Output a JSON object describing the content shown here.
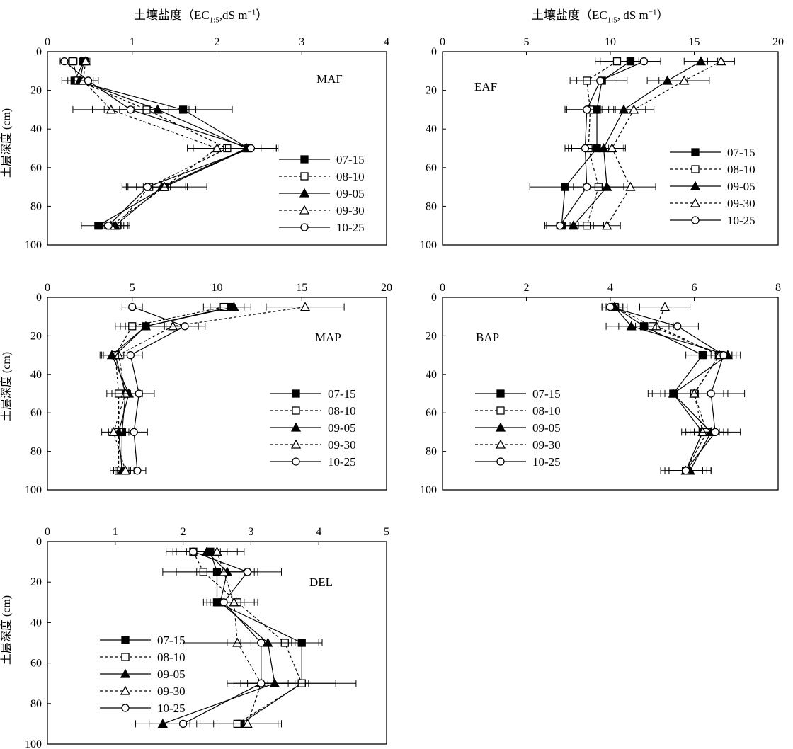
{
  "figure": {
    "top_titles": [
      "土壤盐度（EC",
      "1:5",
      ",dS m",
      "−1",
      "）"
    ],
    "top_titles_right": [
      "土壤盐度（EC",
      "1:5",
      ", dS m",
      "−1",
      "）"
    ],
    "marker_styles": {
      "07-15": {
        "shape": "square",
        "fill": "#000000",
        "dash": "solid"
      },
      "08-10": {
        "shape": "square",
        "fill": "#ffffff",
        "dash": "dashed"
      },
      "09-05": {
        "shape": "triangle",
        "fill": "#000000",
        "dash": "solid"
      },
      "09-30": {
        "shape": "triangle",
        "fill": "#ffffff",
        "dash": "dashed"
      },
      "10-25": {
        "shape": "circle",
        "fill": "#ffffff",
        "dash": "solid"
      }
    }
  },
  "chart_data": [
    {
      "type": "line",
      "panel": "MAF",
      "xlabel": "土壤盐度（EC1:5,dS m−1）",
      "ylabel": "土层深度 (cm)",
      "xlim": [
        0,
        4
      ],
      "xticks": [
        0,
        1,
        2,
        3,
        4
      ],
      "ylim": [
        0,
        100
      ],
      "yticks": [
        0,
        20,
        40,
        60,
        80,
        100
      ],
      "y_inverted": true,
      "legend_position": "right-middle",
      "depths": [
        5,
        15,
        30,
        50,
        70,
        90
      ],
      "series": [
        {
          "name": "07-15",
          "x": [
            0.43,
            0.32,
            1.6,
            2.37,
            1.38,
            0.6
          ],
          "err": [
            0.05,
            0.15,
            0.58,
            0.35,
            0.25,
            0.2
          ]
        },
        {
          "name": "08-10",
          "x": [
            0.3,
            0.36,
            1.17,
            2.12,
            1.2,
            0.82
          ],
          "err": [
            0.05,
            0.12,
            0.5,
            0.4,
            0.25,
            0.15
          ]
        },
        {
          "name": "09-05",
          "x": [
            0.43,
            0.38,
            1.3,
            2.35,
            1.35,
            0.8
          ],
          "err": [
            0.05,
            0.1,
            0.45,
            0.35,
            0.3,
            0.15
          ]
        },
        {
          "name": "09-30",
          "x": [
            0.45,
            0.42,
            0.75,
            2.0,
            1.38,
            0.75
          ],
          "err": [
            0.05,
            0.12,
            0.45,
            0.35,
            0.5,
            0.15
          ]
        },
        {
          "name": "10-25",
          "x": [
            0.2,
            0.48,
            0.98,
            2.4,
            1.18,
            0.72
          ],
          "err": [
            0.05,
            0.12,
            0.45,
            0.3,
            0.25,
            0.15
          ]
        }
      ]
    },
    {
      "type": "line",
      "panel": "EAF",
      "xlabel": "土壤盐度（EC1:5, dS m−1）",
      "ylabel": "",
      "xlim": [
        0,
        20
      ],
      "xticks": [
        0,
        5,
        10,
        15,
        20
      ],
      "ylim": [
        0,
        100
      ],
      "yticks": [
        0,
        20,
        40,
        60,
        80,
        100
      ],
      "y_inverted": true,
      "legend_position": "right-middle",
      "depths": [
        5,
        15,
        30,
        50,
        70,
        90
      ],
      "series": [
        {
          "name": "07-15",
          "x": [
            11.2,
            9.5,
            9.2,
            9.2,
            7.3,
            7.1
          ],
          "err": [
            1.8,
            1.5,
            1.8,
            1.5,
            2.1,
            1.0
          ]
        },
        {
          "name": "08-10",
          "x": [
            10.4,
            8.6,
            8.8,
            8.7,
            9.3,
            8.6
          ],
          "err": [
            1.3,
            1.0,
            1.5,
            1.2,
            1.5,
            1.0
          ]
        },
        {
          "name": "09-05",
          "x": [
            15.4,
            13.4,
            10.8,
            9.6,
            9.8,
            7.8
          ],
          "err": [
            1.0,
            1.2,
            1.3,
            1.2,
            1.4,
            1.0
          ]
        },
        {
          "name": "09-30",
          "x": [
            16.6,
            14.4,
            11.4,
            10.1,
            11.2,
            9.8
          ],
          "err": [
            0.8,
            1.5,
            1.2,
            0.8,
            1.5,
            0.8
          ]
        },
        {
          "name": "10-25",
          "x": [
            12.0,
            9.4,
            8.6,
            8.5,
            8.6,
            7.0
          ],
          "err": [
            1.0,
            1.0,
            1.3,
            1.2,
            1.2,
            0.8
          ]
        }
      ]
    },
    {
      "type": "line",
      "panel": "MAP",
      "xlabel": "",
      "ylabel": "土层深度 (cm)",
      "xlim": [
        0,
        20
      ],
      "xticks": [
        0,
        5,
        10,
        15,
        20
      ],
      "ylim": [
        0,
        100
      ],
      "yticks": [
        0,
        20,
        40,
        60,
        80,
        100
      ],
      "y_inverted": true,
      "legend_position": "right-middle",
      "depths": [
        5,
        15,
        30,
        50,
        70,
        90
      ],
      "series": [
        {
          "name": "07-15",
          "x": [
            10.8,
            5.8,
            4.0,
            4.6,
            4.4,
            4.4
          ],
          "err": [
            1.2,
            1.5,
            0.8,
            0.8,
            0.6,
            0.5
          ]
        },
        {
          "name": "08-10",
          "x": [
            10.4,
            5.0,
            4.0,
            4.2,
            4.2,
            4.2
          ],
          "err": [
            1.2,
            1.0,
            0.7,
            0.7,
            0.6,
            0.5
          ]
        },
        {
          "name": "09-05",
          "x": [
            11.0,
            5.8,
            3.8,
            4.8,
            4.2,
            4.4
          ],
          "err": [
            1.0,
            1.2,
            0.7,
            0.8,
            0.6,
            0.5
          ]
        },
        {
          "name": "09-30",
          "x": [
            15.2,
            7.4,
            4.2,
            4.6,
            3.9,
            4.6
          ],
          "err": [
            2.3,
            1.5,
            0.8,
            0.8,
            0.7,
            0.5
          ]
        },
        {
          "name": "10-25",
          "x": [
            5.0,
            8.1,
            4.9,
            5.4,
            5.1,
            5.3
          ],
          "err": [
            0.6,
            1.2,
            0.7,
            0.9,
            0.8,
            0.5
          ]
        }
      ]
    },
    {
      "type": "line",
      "panel": "BAP",
      "xlabel": "",
      "ylabel": "",
      "xlim": [
        0,
        8
      ],
      "xticks": [
        0,
        2,
        4,
        6,
        8
      ],
      "ylim": [
        0,
        100
      ],
      "yticks": [
        0,
        20,
        40,
        60,
        80,
        100
      ],
      "y_inverted": true,
      "legend_position": "left-middle",
      "depths": [
        5,
        15,
        30,
        50,
        70,
        90
      ],
      "series": [
        {
          "name": "07-15",
          "x": [
            4.1,
            4.8,
            6.2,
            5.5,
            6.2,
            5.8
          ],
          "err": [
            0.3,
            0.6,
            0.4,
            0.6,
            0.5,
            0.6
          ]
        },
        {
          "name": "08-10",
          "x": [
            4.1,
            5.0,
            6.6,
            6.0,
            6.3,
            5.8
          ],
          "err": [
            0.2,
            0.5,
            0.3,
            0.8,
            0.4,
            0.5
          ]
        },
        {
          "name": "09-05",
          "x": [
            4.1,
            4.5,
            6.8,
            5.5,
            6.4,
            5.9
          ],
          "err": [
            0.2,
            0.6,
            0.3,
            0.5,
            0.4,
            0.5
          ]
        },
        {
          "name": "09-30",
          "x": [
            5.3,
            5.1,
            6.6,
            6.0,
            6.2,
            5.8
          ],
          "err": [
            0.6,
            0.5,
            0.3,
            0.7,
            0.4,
            0.4
          ]
        },
        {
          "name": "10-25",
          "x": [
            4.0,
            5.6,
            6.7,
            6.4,
            6.5,
            5.8
          ],
          "err": [
            0.2,
            0.5,
            0.3,
            0.8,
            0.6,
            0.4
          ]
        }
      ]
    },
    {
      "type": "line",
      "panel": "DEL",
      "xlabel": "",
      "ylabel": "土层深度 (cm)",
      "xlim": [
        0,
        5
      ],
      "xticks": [
        0,
        1,
        2,
        3,
        4,
        5
      ],
      "ylim": [
        0,
        100
      ],
      "yticks": [
        0,
        20,
        40,
        60,
        80,
        100
      ],
      "y_inverted": true,
      "legend_position": "left-middle",
      "depths": [
        5,
        15,
        30,
        50,
        70,
        90
      ],
      "series": [
        {
          "name": "07-15",
          "x": [
            2.4,
            2.5,
            2.5,
            3.75,
            3.75,
            2.85
          ],
          "err": [
            0.5,
            0.6,
            0.1,
            0.3,
            0.5,
            0.6
          ]
        },
        {
          "name": "08-10",
          "x": [
            2.15,
            2.3,
            2.8,
            3.5,
            3.75,
            2.8
          ],
          "err": [
            0.4,
            0.6,
            0.3,
            0.5,
            0.8,
            0.6
          ]
        },
        {
          "name": "09-05",
          "x": [
            2.35,
            2.65,
            2.55,
            3.25,
            3.35,
            1.7
          ],
          "err": [
            0.3,
            0.4,
            0.2,
            0.4,
            0.5,
            0.4
          ]
        },
        {
          "name": "09-30",
          "x": [
            2.5,
            2.6,
            2.75,
            2.8,
            3.15,
            2.95
          ],
          "err": [
            0.3,
            0.4,
            0.3,
            0.8,
            0.4,
            0.5
          ]
        },
        {
          "name": "10-25",
          "x": [
            2.15,
            2.95,
            2.6,
            3.15,
            3.15,
            2.0
          ],
          "err": [
            0.3,
            0.5,
            0.3,
            0.5,
            0.5,
            0.5
          ]
        }
      ]
    }
  ]
}
